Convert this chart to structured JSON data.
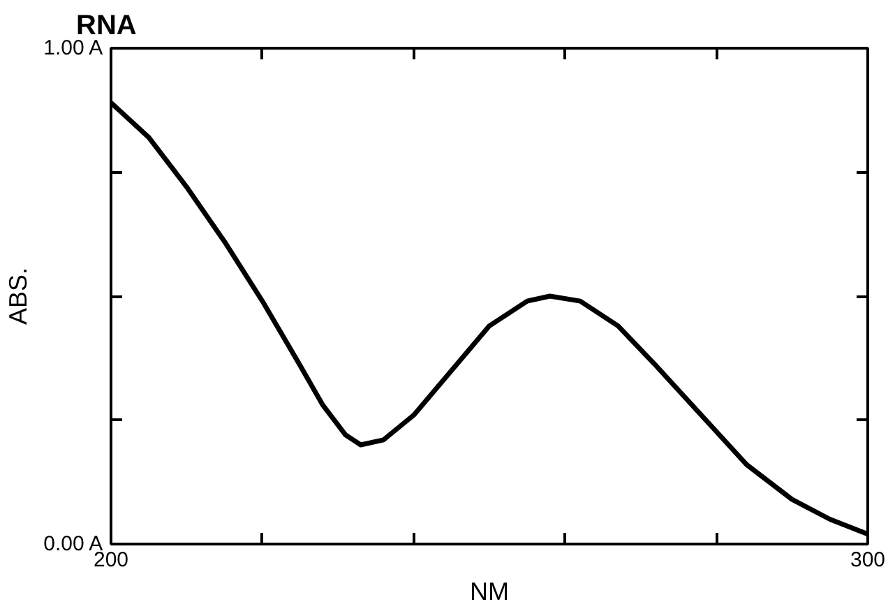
{
  "chart_data": {
    "type": "line",
    "title": "RNA",
    "xlabel": "NM",
    "ylabel": "ABS.",
    "x": [
      200,
      205,
      210,
      215,
      220,
      225,
      228,
      231,
      233,
      236,
      240,
      245,
      250,
      255,
      258,
      262,
      267,
      272,
      278,
      284,
      290,
      295,
      300
    ],
    "series": [
      {
        "color": "#000000",
        "values": [
          0.89,
          0.82,
          0.72,
          0.61,
          0.49,
          0.36,
          0.28,
          0.22,
          0.2,
          0.21,
          0.26,
          0.35,
          0.44,
          0.49,
          0.5,
          0.49,
          0.44,
          0.36,
          0.26,
          0.16,
          0.09,
          0.05,
          0.02
        ]
      }
    ],
    "xlim": [
      200,
      300
    ],
    "ylim": [
      0,
      1
    ],
    "xticks": [
      200,
      {
        "value": 220,
        "label": null
      },
      {
        "value": 240,
        "label": null
      },
      {
        "value": 260,
        "label": null
      },
      {
        "value": 280,
        "label": null
      },
      300
    ],
    "yticks": [
      {
        "value": 0,
        "label": "0.00 A"
      },
      {
        "value": 0.25,
        "label": null
      },
      {
        "value": 0.5,
        "label": null
      },
      {
        "value": 0.75,
        "label": null
      },
      {
        "value": 1,
        "label": "1.00 A"
      }
    ],
    "grid": false,
    "marker": "none",
    "line_style": "solid"
  }
}
